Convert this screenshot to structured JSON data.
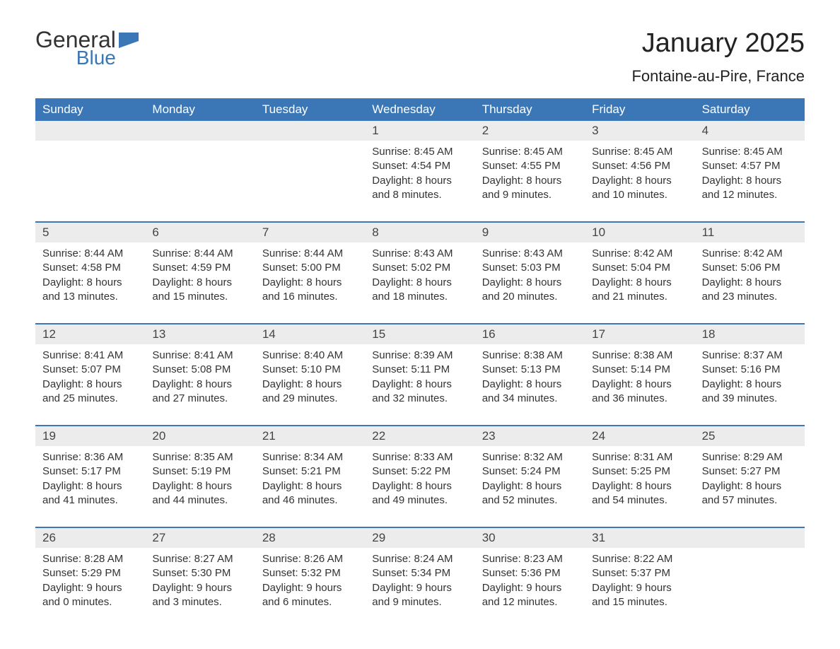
{
  "logo": {
    "word1": "General",
    "word2": "Blue"
  },
  "title": "January 2025",
  "location": "Fontaine-au-Pire, France",
  "colors": {
    "header_bg": "#3b77b6",
    "header_text": "#ffffff",
    "daynum_bg": "#ececec",
    "week_border": "#3b77b6",
    "logo_blue": "#3b77b6",
    "body_text": "#333333"
  },
  "day_names": [
    "Sunday",
    "Monday",
    "Tuesday",
    "Wednesday",
    "Thursday",
    "Friday",
    "Saturday"
  ],
  "weeks": [
    {
      "days": [
        {
          "empty": true
        },
        {
          "empty": true
        },
        {
          "empty": true
        },
        {
          "num": "1",
          "sunrise": "Sunrise: 8:45 AM",
          "sunset": "Sunset: 4:54 PM",
          "dl1": "Daylight: 8 hours",
          "dl2": "and 8 minutes."
        },
        {
          "num": "2",
          "sunrise": "Sunrise: 8:45 AM",
          "sunset": "Sunset: 4:55 PM",
          "dl1": "Daylight: 8 hours",
          "dl2": "and 9 minutes."
        },
        {
          "num": "3",
          "sunrise": "Sunrise: 8:45 AM",
          "sunset": "Sunset: 4:56 PM",
          "dl1": "Daylight: 8 hours",
          "dl2": "and 10 minutes."
        },
        {
          "num": "4",
          "sunrise": "Sunrise: 8:45 AM",
          "sunset": "Sunset: 4:57 PM",
          "dl1": "Daylight: 8 hours",
          "dl2": "and 12 minutes."
        }
      ]
    },
    {
      "days": [
        {
          "num": "5",
          "sunrise": "Sunrise: 8:44 AM",
          "sunset": "Sunset: 4:58 PM",
          "dl1": "Daylight: 8 hours",
          "dl2": "and 13 minutes."
        },
        {
          "num": "6",
          "sunrise": "Sunrise: 8:44 AM",
          "sunset": "Sunset: 4:59 PM",
          "dl1": "Daylight: 8 hours",
          "dl2": "and 15 minutes."
        },
        {
          "num": "7",
          "sunrise": "Sunrise: 8:44 AM",
          "sunset": "Sunset: 5:00 PM",
          "dl1": "Daylight: 8 hours",
          "dl2": "and 16 minutes."
        },
        {
          "num": "8",
          "sunrise": "Sunrise: 8:43 AM",
          "sunset": "Sunset: 5:02 PM",
          "dl1": "Daylight: 8 hours",
          "dl2": "and 18 minutes."
        },
        {
          "num": "9",
          "sunrise": "Sunrise: 8:43 AM",
          "sunset": "Sunset: 5:03 PM",
          "dl1": "Daylight: 8 hours",
          "dl2": "and 20 minutes."
        },
        {
          "num": "10",
          "sunrise": "Sunrise: 8:42 AM",
          "sunset": "Sunset: 5:04 PM",
          "dl1": "Daylight: 8 hours",
          "dl2": "and 21 minutes."
        },
        {
          "num": "11",
          "sunrise": "Sunrise: 8:42 AM",
          "sunset": "Sunset: 5:06 PM",
          "dl1": "Daylight: 8 hours",
          "dl2": "and 23 minutes."
        }
      ]
    },
    {
      "days": [
        {
          "num": "12",
          "sunrise": "Sunrise: 8:41 AM",
          "sunset": "Sunset: 5:07 PM",
          "dl1": "Daylight: 8 hours",
          "dl2": "and 25 minutes."
        },
        {
          "num": "13",
          "sunrise": "Sunrise: 8:41 AM",
          "sunset": "Sunset: 5:08 PM",
          "dl1": "Daylight: 8 hours",
          "dl2": "and 27 minutes."
        },
        {
          "num": "14",
          "sunrise": "Sunrise: 8:40 AM",
          "sunset": "Sunset: 5:10 PM",
          "dl1": "Daylight: 8 hours",
          "dl2": "and 29 minutes."
        },
        {
          "num": "15",
          "sunrise": "Sunrise: 8:39 AM",
          "sunset": "Sunset: 5:11 PM",
          "dl1": "Daylight: 8 hours",
          "dl2": "and 32 minutes."
        },
        {
          "num": "16",
          "sunrise": "Sunrise: 8:38 AM",
          "sunset": "Sunset: 5:13 PM",
          "dl1": "Daylight: 8 hours",
          "dl2": "and 34 minutes."
        },
        {
          "num": "17",
          "sunrise": "Sunrise: 8:38 AM",
          "sunset": "Sunset: 5:14 PM",
          "dl1": "Daylight: 8 hours",
          "dl2": "and 36 minutes."
        },
        {
          "num": "18",
          "sunrise": "Sunrise: 8:37 AM",
          "sunset": "Sunset: 5:16 PM",
          "dl1": "Daylight: 8 hours",
          "dl2": "and 39 minutes."
        }
      ]
    },
    {
      "days": [
        {
          "num": "19",
          "sunrise": "Sunrise: 8:36 AM",
          "sunset": "Sunset: 5:17 PM",
          "dl1": "Daylight: 8 hours",
          "dl2": "and 41 minutes."
        },
        {
          "num": "20",
          "sunrise": "Sunrise: 8:35 AM",
          "sunset": "Sunset: 5:19 PM",
          "dl1": "Daylight: 8 hours",
          "dl2": "and 44 minutes."
        },
        {
          "num": "21",
          "sunrise": "Sunrise: 8:34 AM",
          "sunset": "Sunset: 5:21 PM",
          "dl1": "Daylight: 8 hours",
          "dl2": "and 46 minutes."
        },
        {
          "num": "22",
          "sunrise": "Sunrise: 8:33 AM",
          "sunset": "Sunset: 5:22 PM",
          "dl1": "Daylight: 8 hours",
          "dl2": "and 49 minutes."
        },
        {
          "num": "23",
          "sunrise": "Sunrise: 8:32 AM",
          "sunset": "Sunset: 5:24 PM",
          "dl1": "Daylight: 8 hours",
          "dl2": "and 52 minutes."
        },
        {
          "num": "24",
          "sunrise": "Sunrise: 8:31 AM",
          "sunset": "Sunset: 5:25 PM",
          "dl1": "Daylight: 8 hours",
          "dl2": "and 54 minutes."
        },
        {
          "num": "25",
          "sunrise": "Sunrise: 8:29 AM",
          "sunset": "Sunset: 5:27 PM",
          "dl1": "Daylight: 8 hours",
          "dl2": "and 57 minutes."
        }
      ]
    },
    {
      "days": [
        {
          "num": "26",
          "sunrise": "Sunrise: 8:28 AM",
          "sunset": "Sunset: 5:29 PM",
          "dl1": "Daylight: 9 hours",
          "dl2": "and 0 minutes."
        },
        {
          "num": "27",
          "sunrise": "Sunrise: 8:27 AM",
          "sunset": "Sunset: 5:30 PM",
          "dl1": "Daylight: 9 hours",
          "dl2": "and 3 minutes."
        },
        {
          "num": "28",
          "sunrise": "Sunrise: 8:26 AM",
          "sunset": "Sunset: 5:32 PM",
          "dl1": "Daylight: 9 hours",
          "dl2": "and 6 minutes."
        },
        {
          "num": "29",
          "sunrise": "Sunrise: 8:24 AM",
          "sunset": "Sunset: 5:34 PM",
          "dl1": "Daylight: 9 hours",
          "dl2": "and 9 minutes."
        },
        {
          "num": "30",
          "sunrise": "Sunrise: 8:23 AM",
          "sunset": "Sunset: 5:36 PM",
          "dl1": "Daylight: 9 hours",
          "dl2": "and 12 minutes."
        },
        {
          "num": "31",
          "sunrise": "Sunrise: 8:22 AM",
          "sunset": "Sunset: 5:37 PM",
          "dl1": "Daylight: 9 hours",
          "dl2": "and 15 minutes."
        },
        {
          "empty": true
        }
      ]
    }
  ]
}
